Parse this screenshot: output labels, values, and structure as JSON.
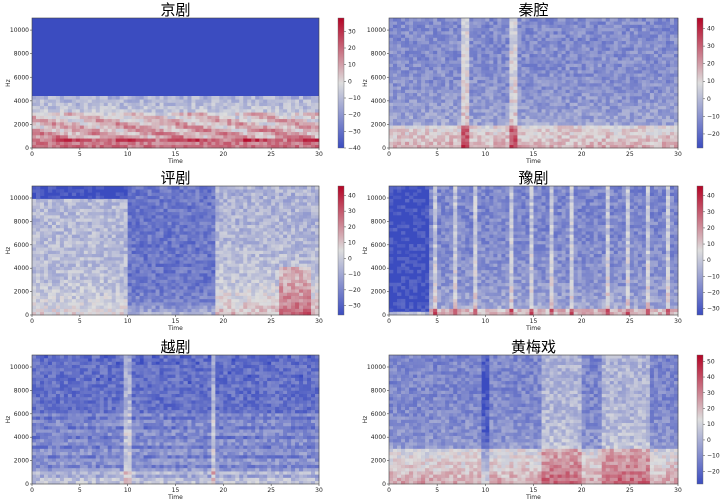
{
  "colormap": {
    "low": "#3b4cc0",
    "mid": "#dddddd",
    "high": "#b40426"
  },
  "chart_data": [
    {
      "type": "heatmap",
      "title": "京剧",
      "xlabel": "Time",
      "ylabel": "Hz",
      "xlim": [
        0,
        30
      ],
      "ylim": [
        0,
        11025
      ],
      "xticks": [
        "0",
        "5",
        "10",
        "15",
        "20",
        "25",
        "30"
      ],
      "yticks": [
        "0",
        "2000",
        "4000",
        "6000",
        "8000",
        "10000"
      ],
      "colorbar": {
        "min": -40,
        "max": 38,
        "ticks": [
          "30",
          "20",
          "10",
          "0",
          "−10",
          "−20",
          "−30",
          "−40"
        ],
        "tick_values": [
          30,
          20,
          10,
          0,
          -10,
          -20,
          -30,
          -40
        ]
      },
      "profile": "band-limited: energy below ~4400 Hz, strong band 500–3000 Hz, silent above"
    },
    {
      "type": "heatmap",
      "title": "秦腔",
      "xlabel": "Time",
      "ylabel": "Hz",
      "xlim": [
        0,
        30
      ],
      "ylim": [
        0,
        11025
      ],
      "xticks": [
        "0",
        "5",
        "10",
        "15",
        "20",
        "25",
        "30"
      ],
      "yticks": [
        "0",
        "2000",
        "4000",
        "6000",
        "8000",
        "10000"
      ],
      "colorbar": {
        "min": -28,
        "max": 46,
        "ticks": [
          "40",
          "30",
          "20",
          "10",
          "0",
          "−10",
          "−20"
        ],
        "tick_values": [
          40,
          30,
          20,
          10,
          0,
          -10,
          -20
        ]
      },
      "profile": "broadband noise, warm band below 2000 Hz, vertical bright streaks near 8 s and 13 s"
    },
    {
      "type": "heatmap",
      "title": "评剧",
      "xlabel": "Time",
      "ylabel": "Hz",
      "xlim": [
        0,
        30
      ],
      "ylim": [
        0,
        11025
      ],
      "xticks": [
        "0",
        "5",
        "10",
        "15",
        "20",
        "25",
        "30"
      ],
      "yticks": [
        "0",
        "2000",
        "4000",
        "6000",
        "8000",
        "10000"
      ],
      "colorbar": {
        "min": -36,
        "max": 46,
        "ticks": [
          "40",
          "30",
          "20",
          "10",
          "0",
          "−10",
          "−20",
          "−30"
        ],
        "tick_values": [
          40,
          30,
          20,
          10,
          0,
          -10,
          -20,
          -30
        ]
      },
      "profile": "dense broadband 0–10 s up to 10000 Hz, quieter 10–19 s, busy broadband with warm lows 19–30 s"
    },
    {
      "type": "heatmap",
      "title": "豫剧",
      "xlabel": "Time",
      "ylabel": "Hz",
      "xlim": [
        0,
        30
      ],
      "ylim": [
        0,
        11025
      ],
      "xticks": [
        "0",
        "5",
        "10",
        "15",
        "20",
        "25",
        "30"
      ],
      "yticks": [
        "0",
        "2000",
        "4000",
        "6000",
        "8000",
        "10000"
      ],
      "colorbar": {
        "min": -34,
        "max": 46,
        "ticks": [
          "40",
          "30",
          "20",
          "10",
          "0",
          "−10",
          "−20",
          "−30"
        ],
        "tick_values": [
          40,
          30,
          20,
          10,
          0,
          -10,
          -20,
          -30
        ]
      },
      "profile": "near silence 0–4 s except lowest band, then many periodic vertical streaks to 30 s"
    },
    {
      "type": "heatmap",
      "title": "越剧",
      "xlabel": "Time",
      "ylabel": "Hz",
      "xlim": [
        0,
        30
      ],
      "ylim": [
        0,
        11025
      ],
      "xticks": [
        "0",
        "5",
        "10",
        "15",
        "20",
        "25",
        "30"
      ],
      "yticks": [
        "0",
        "2000",
        "4000",
        "6000",
        "8000",
        "10000"
      ],
      "colorbar": null,
      "profile": "mostly cool, faint horizontal harmonics below 6000 Hz, vertical streaks near 10 s and 19 s"
    },
    {
      "type": "heatmap",
      "title": "黄梅戏",
      "xlabel": "Time",
      "ylabel": "Hz",
      "xlim": [
        0,
        30
      ],
      "ylim": [
        0,
        11025
      ],
      "xticks": [
        "0",
        "5",
        "10",
        "15",
        "20",
        "25",
        "30"
      ],
      "yticks": [
        "0",
        "2000",
        "4000",
        "6000",
        "8000",
        "10000"
      ],
      "colorbar": {
        "min": -28,
        "max": 54,
        "ticks": [
          "50",
          "40",
          "30",
          "20",
          "10",
          "0",
          "−10",
          "−20"
        ],
        "tick_values": [
          50,
          40,
          30,
          20,
          10,
          0,
          -10,
          -20
        ]
      },
      "profile": "warm energy below 3000 Hz, bright broadband blocks 16–20 s and 22–27 s"
    }
  ]
}
